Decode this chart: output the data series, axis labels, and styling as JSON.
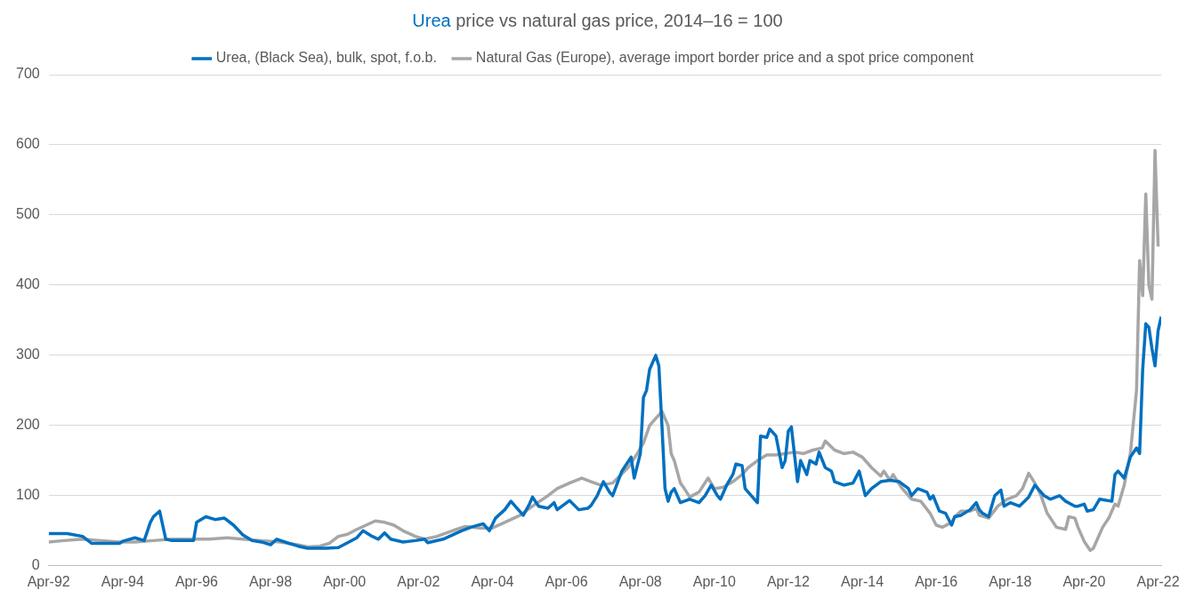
{
  "chart_data": {
    "type": "line",
    "title": "Urea price vs natural gas price, 2014–16 = 100",
    "xlim": [
      "1992-04",
      "2022-05"
    ],
    "ylim": [
      0,
      700
    ],
    "xticks": [
      {
        "value": "1992-04",
        "label": "Apr-92"
      },
      {
        "value": "1994-04",
        "label": "Apr-94"
      },
      {
        "value": "1996-04",
        "label": "Apr-96"
      },
      {
        "value": "1998-04",
        "label": "Apr-98"
      },
      {
        "value": "2000-04",
        "label": "Apr-00"
      },
      {
        "value": "2002-04",
        "label": "Apr-02"
      },
      {
        "value": "2004-04",
        "label": "Apr-04"
      },
      {
        "value": "2006-04",
        "label": "Apr-06"
      },
      {
        "value": "2008-04",
        "label": "Apr-08"
      },
      {
        "value": "2010-04",
        "label": "Apr-10"
      },
      {
        "value": "2012-04",
        "label": "Apr-12"
      },
      {
        "value": "2014-04",
        "label": "Apr-14"
      },
      {
        "value": "2016-04",
        "label": "Apr-16"
      },
      {
        "value": "2018-04",
        "label": "Apr-18"
      },
      {
        "value": "2020-04",
        "label": "Apr-20"
      },
      {
        "value": "2022-04",
        "label": "Apr-22"
      }
    ],
    "yticks": [
      0,
      100,
      200,
      300,
      400,
      500,
      600,
      700
    ],
    "grid": "y",
    "legend": "top",
    "marker": "none",
    "line_style": "solid",
    "series": [
      {
        "name": "Urea, (Black Sea), bulk, spot, f.o.b.",
        "color": "#0070c0",
        "x": [
          "1992-04",
          "1992-10",
          "1993-03",
          "1993-06",
          "1994-03",
          "1994-04",
          "1994-08",
          "1994-11",
          "1995-01",
          "1995-02",
          "1995-04",
          "1995-06",
          "1995-08",
          "1996-03",
          "1996-04",
          "1996-07",
          "1996-10",
          "1997-01",
          "1997-04",
          "1997-07",
          "1997-10",
          "1998-01",
          "1998-04",
          "1998-06",
          "1998-10",
          "1999-01",
          "1999-04",
          "1999-10",
          "2000-02",
          "2000-05",
          "2000-08",
          "2000-10",
          "2001-01",
          "2001-03",
          "2001-05",
          "2001-07",
          "2001-11",
          "2002-03",
          "2002-06",
          "2002-07",
          "2002-12",
          "2003-03",
          "2003-06",
          "2003-09",
          "2004-01",
          "2004-03",
          "2004-05",
          "2004-08",
          "2004-10",
          "2004-12",
          "2005-02",
          "2005-04",
          "2005-05",
          "2005-07",
          "2005-10",
          "2005-12",
          "2006-01",
          "2006-05",
          "2006-08",
          "2006-11",
          "2006-12",
          "2007-02",
          "2007-04",
          "2007-06",
          "2007-07",
          "2007-10",
          "2008-01",
          "2008-02",
          "2008-04",
          "2008-05",
          "2008-06",
          "2008-07",
          "2008-09",
          "2008-10",
          "2008-11",
          "2008-12",
          "2009-01",
          "2009-02",
          "2009-03",
          "2009-05",
          "2009-08",
          "2009-11",
          "2010-01",
          "2010-03",
          "2010-05",
          "2010-06",
          "2010-08",
          "2010-10",
          "2010-11",
          "2011-01",
          "2011-02",
          "2011-04",
          "2011-06",
          "2011-07",
          "2011-09",
          "2011-10",
          "2011-12",
          "2012-02",
          "2012-03",
          "2012-04",
          "2012-05",
          "2012-07",
          "2012-08",
          "2012-10",
          "2012-11",
          "2013-01",
          "2013-02",
          "2013-04",
          "2013-06",
          "2013-07",
          "2013-10",
          "2014-01",
          "2014-03",
          "2014-05",
          "2014-07",
          "2014-10",
          "2015-01",
          "2015-04",
          "2015-07",
          "2015-08",
          "2015-10",
          "2016-01",
          "2016-02",
          "2016-03",
          "2016-05",
          "2016-07",
          "2016-09",
          "2016-10",
          "2016-12",
          "2017-03",
          "2017-05",
          "2017-06",
          "2017-07",
          "2017-09",
          "2017-11",
          "2018-01",
          "2018-02",
          "2018-04",
          "2018-07",
          "2018-10",
          "2018-12",
          "2019-01",
          "2019-03",
          "2019-05",
          "2019-08",
          "2019-10",
          "2020-01",
          "2020-02",
          "2020-04",
          "2020-05",
          "2020-07",
          "2020-09",
          "2021-01",
          "2021-02",
          "2021-03",
          "2021-05",
          "2021-07",
          "2021-09",
          "2021-10",
          "2021-11",
          "2021-12",
          "2022-01",
          "2022-02",
          "2022-03",
          "2022-04",
          "2022-05"
        ],
        "values": [
          46,
          46,
          42,
          32,
          32,
          35,
          40,
          36,
          62,
          70,
          78,
          38,
          36,
          36,
          62,
          70,
          66,
          68,
          58,
          44,
          36,
          34,
          30,
          38,
          32,
          28,
          25,
          25,
          26,
          33,
          40,
          50,
          42,
          38,
          47,
          38,
          34,
          36,
          38,
          33,
          38,
          44,
          50,
          55,
          60,
          50,
          68,
          80,
          92,
          82,
          72,
          88,
          98,
          85,
          82,
          90,
          80,
          93,
          80,
          82,
          86,
          100,
          120,
          105,
          100,
          135,
          155,
          125,
          160,
          240,
          250,
          280,
          300,
          285,
          200,
          110,
          92,
          105,
          110,
          90,
          95,
          90,
          100,
          115,
          100,
          95,
          115,
          130,
          145,
          143,
          110,
          100,
          90,
          185,
          183,
          195,
          185,
          140,
          150,
          192,
          198,
          120,
          150,
          130,
          150,
          145,
          162,
          140,
          135,
          120,
          115,
          118,
          135,
          100,
          110,
          120,
          122,
          120,
          110,
          100,
          110,
          105,
          95,
          100,
          78,
          75,
          58,
          70,
          72,
          80,
          90,
          80,
          75,
          70,
          100,
          108,
          85,
          90,
          85,
          98,
          115,
          110,
          100,
          95,
          100,
          92,
          85,
          85,
          88,
          78,
          80,
          95,
          92,
          130,
          135,
          125,
          155,
          168,
          160,
          280,
          345,
          340,
          310,
          285,
          335,
          355
        ]
      },
      {
        "name": "Natural Gas (Europe), average import border price and a spot price component",
        "color": "#a6a6a6",
        "x": [
          "1992-04",
          "1992-09",
          "1993-03",
          "1993-09",
          "1994-03",
          "1994-08",
          "1995-02",
          "1995-08",
          "1996-03",
          "1996-08",
          "1997-02",
          "1997-07",
          "1998-01",
          "1998-07",
          "1999-01",
          "1999-04",
          "1999-08",
          "1999-11",
          "2000-02",
          "2000-05",
          "2000-08",
          "2000-11",
          "2001-02",
          "2001-05",
          "2001-08",
          "2001-11",
          "2002-03",
          "2002-06",
          "2002-10",
          "2003-03",
          "2003-07",
          "2003-12",
          "2004-04",
          "2004-08",
          "2005-01",
          "2005-05",
          "2005-10",
          "2006-01",
          "2006-05",
          "2006-09",
          "2006-12",
          "2007-03",
          "2007-07",
          "2007-12",
          "2008-03",
          "2008-05",
          "2008-07",
          "2008-09",
          "2008-11",
          "2009-01",
          "2009-02",
          "2009-03",
          "2009-05",
          "2009-06",
          "2009-08",
          "2009-11",
          "2010-02",
          "2010-04",
          "2010-07",
          "2010-10",
          "2011-01",
          "2011-03",
          "2011-06",
          "2011-09",
          "2011-12",
          "2012-03",
          "2012-06",
          "2012-09",
          "2012-12",
          "2013-03",
          "2013-04",
          "2013-07",
          "2013-10",
          "2014-01",
          "2014-04",
          "2014-07",
          "2014-10",
          "2014-11",
          "2015-01",
          "2015-02",
          "2015-05",
          "2015-08",
          "2015-11",
          "2016-02",
          "2016-04",
          "2016-06",
          "2016-09",
          "2016-10",
          "2016-12",
          "2017-03",
          "2017-05",
          "2017-06",
          "2017-09",
          "2017-12",
          "2018-03",
          "2018-06",
          "2018-08",
          "2018-10",
          "2018-12",
          "2019-02",
          "2019-04",
          "2019-07",
          "2019-10",
          "2019-11",
          "2020-01",
          "2020-02",
          "2020-04",
          "2020-06",
          "2020-07",
          "2020-10",
          "2020-12",
          "2021-02",
          "2021-03",
          "2021-05",
          "2021-07",
          "2021-09",
          "2021-10",
          "2021-11",
          "2021-12",
          "2022-01",
          "2022-02",
          "2022-03",
          "2022-04"
        ],
        "values": [
          34,
          36,
          38,
          36,
          34,
          34,
          36,
          38,
          38,
          38,
          40,
          38,
          36,
          34,
          30,
          27,
          28,
          32,
          42,
          45,
          52,
          58,
          64,
          62,
          58,
          50,
          42,
          38,
          42,
          50,
          56,
          54,
          54,
          62,
          72,
          85,
          100,
          110,
          118,
          125,
          120,
          115,
          118,
          140,
          160,
          175,
          200,
          210,
          220,
          200,
          160,
          150,
          118,
          112,
          98,
          105,
          125,
          110,
          112,
          120,
          130,
          140,
          150,
          158,
          158,
          160,
          162,
          160,
          165,
          168,
          178,
          165,
          160,
          162,
          155,
          140,
          128,
          135,
          122,
          130,
          110,
          95,
          92,
          75,
          58,
          55,
          62,
          70,
          78,
          78,
          82,
          72,
          68,
          85,
          95,
          100,
          110,
          132,
          118,
          100,
          75,
          55,
          52,
          70,
          68,
          55,
          35,
          22,
          25,
          55,
          68,
          88,
          85,
          115,
          160,
          250,
          435,
          385,
          530,
          400,
          380,
          592,
          455
        ]
      }
    ]
  }
}
